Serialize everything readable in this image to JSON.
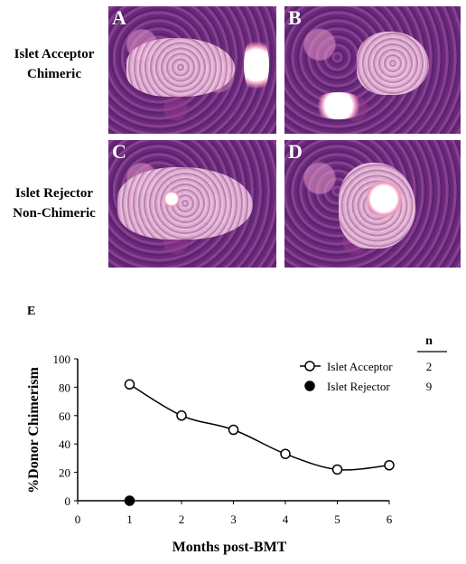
{
  "row_labels": [
    {
      "line1": "Islet Acceptor",
      "line2": "Chimeric"
    },
    {
      "line1": "Islet Rejector",
      "line2": "Non-Chimeric"
    }
  ],
  "panels": [
    "A",
    "B",
    "C",
    "D"
  ],
  "panel_e_label": "E",
  "chart_data": {
    "type": "line",
    "xlabel": "Months post-BMT",
    "ylabel": "%Donor Chimerism",
    "xlim": [
      0,
      6
    ],
    "ylim": [
      0,
      100
    ],
    "x_ticks": [
      "0",
      "1",
      "2",
      "3",
      "4",
      "5",
      "6"
    ],
    "y_ticks": [
      "0",
      "20",
      "40",
      "60",
      "80",
      "100"
    ],
    "grid": false,
    "legend_position": "top-right",
    "legend_n_header": "n",
    "series": [
      {
        "name": "Islet Acceptor",
        "n": "2",
        "marker": "open-circle",
        "x": [
          1,
          2,
          3,
          4,
          5,
          6
        ],
        "y": [
          82,
          60,
          50,
          33,
          22,
          25
        ]
      },
      {
        "name": "Islet Rejector",
        "n": "9",
        "marker": "filled-circle",
        "x": [
          1
        ],
        "y": [
          0
        ]
      }
    ]
  }
}
